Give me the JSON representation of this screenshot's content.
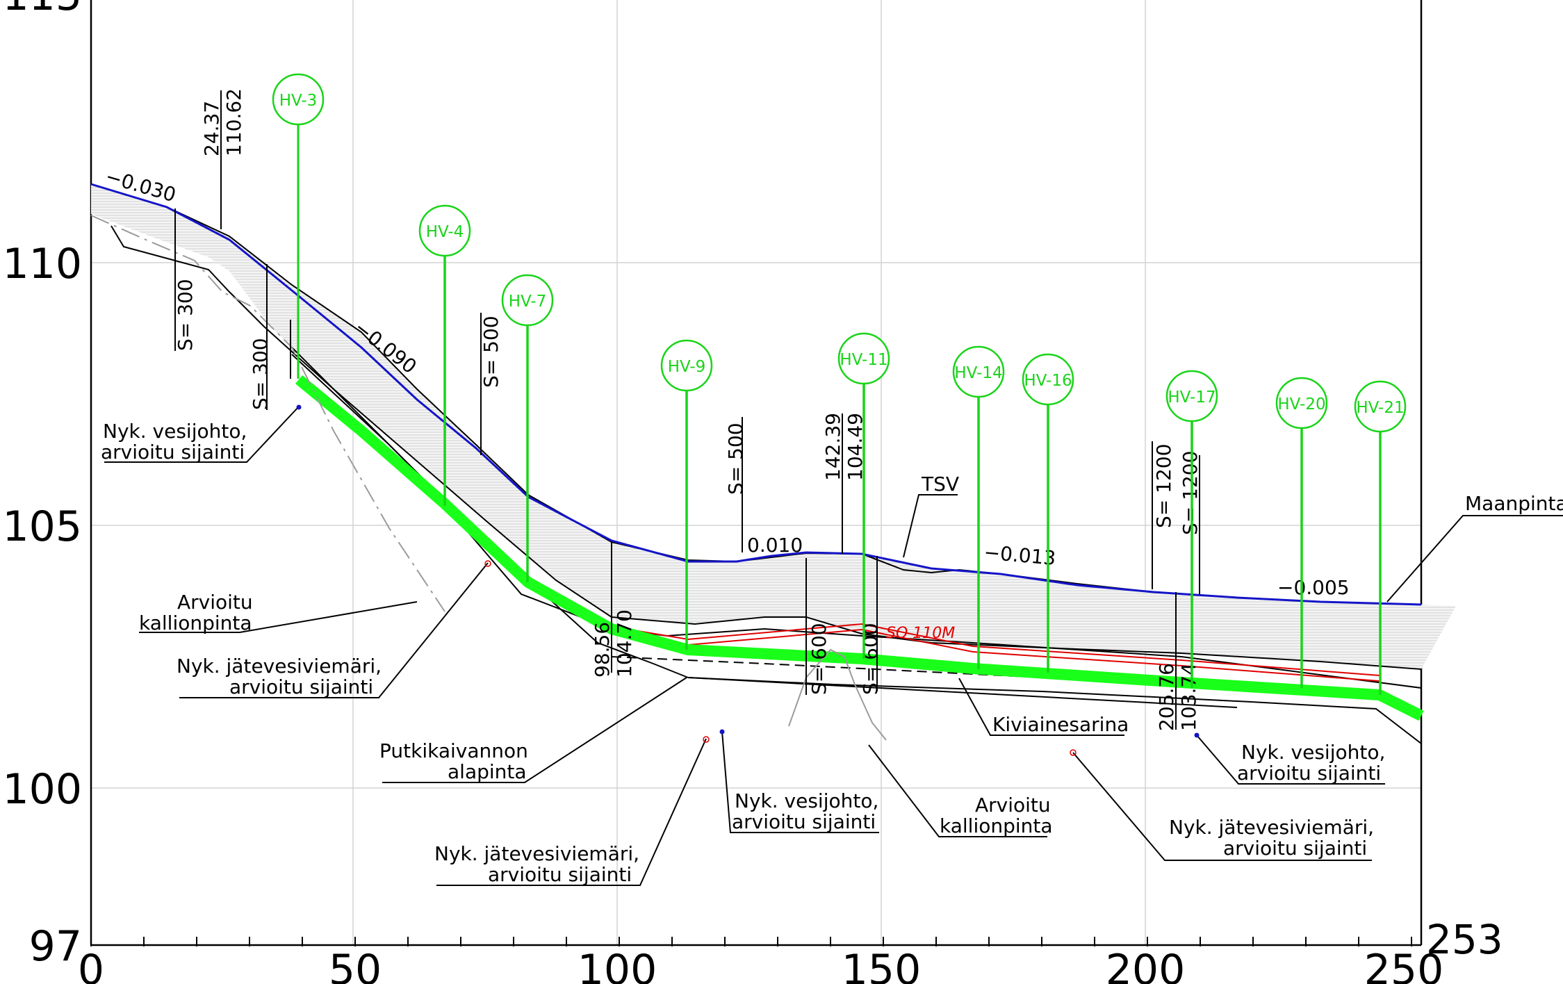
{
  "chart_data": {
    "type": "line",
    "x_ticks": [
      "0",
      "50",
      "100",
      "150",
      "200",
      "250"
    ],
    "y_ticks": [
      "97",
      "100",
      "105",
      "110",
      "115"
    ],
    "x_end_label": "253",
    "xlim": [
      0,
      253
    ],
    "ylim": [
      97,
      115
    ],
    "grid": true,
    "series": [
      {
        "name": "Maanpinta",
        "x": [
          0,
          15,
          25,
          35,
          50,
          65,
          83,
          100,
          110,
          120,
          130,
          142,
          150,
          168,
          185,
          205,
          230,
          253
        ],
        "y": [
          111.5,
          111.0,
          110.5,
          109.8,
          108.5,
          107.0,
          105.6,
          104.7,
          104.4,
          104.4,
          104.5,
          104.5,
          104.4,
          104.2,
          104.0,
          103.7,
          103.6,
          103.5
        ]
      }
    ],
    "gradients": [
      "−0.030",
      "−0.090",
      "0.010",
      "−0.013",
      "−0.005"
    ],
    "vertical_curves": [
      "S= 300",
      "S= 300",
      "S= 500",
      "S= 500",
      "S= 600",
      "S= 600",
      "S= 1200",
      "S= 1200"
    ],
    "station_labels": [
      "24.37",
      "110.62",
      "98.56",
      "104.70",
      "142.39",
      "104.49",
      "205.76",
      "103.74"
    ],
    "markers": [
      "HV-3",
      "HV-4",
      "HV-7",
      "HV-9",
      "HV-11",
      "HV-14",
      "HV-16",
      "HV-17",
      "HV-20",
      "HV-21"
    ],
    "annotations": {
      "maanpinta": "Maanpinta",
      "tsv": "TSV",
      "so": "SO 110M",
      "kiviainesarina": "Kiviainesarina",
      "vesijohto_left_1": "Nyk. vesijohto,",
      "vesijohto_left_2": "arvioitu sijainti",
      "kallio_left_1": "Arvioitu",
      "kallio_left_2": "kallionpinta",
      "jatevesi_left_1": "Nyk. jätevesiviemäri,",
      "jatevesi_left_2": "arvioitu sijainti",
      "putki_1": "Putkikaivannon",
      "putki_2": "alapinta",
      "vesijohto_mid_1": "Nyk. vesijohto,",
      "vesijohto_mid_2": "arvioitu sijainti",
      "kallio_mid_1": "Arvioitu",
      "kallio_mid_2": "kallionpinta",
      "jatevesi_bot_1": "Nyk. jätevesiviemäri,",
      "jatevesi_bot_2": "arvioitu sijainti",
      "vesijohto_right_1": "Nyk. vesijohto,",
      "vesijohto_right_2": "arvioitu sijainti",
      "jatevesi_right_1": "Nyk. jätevesiviemäri,",
      "jatevesi_right_2": "arvioitu sijainti"
    }
  },
  "colors": {
    "ground": "#1414c8",
    "pipe": "#19ff19",
    "marker": "#19d419",
    "red": "#e00000",
    "grid": "#d0d0d0"
  }
}
